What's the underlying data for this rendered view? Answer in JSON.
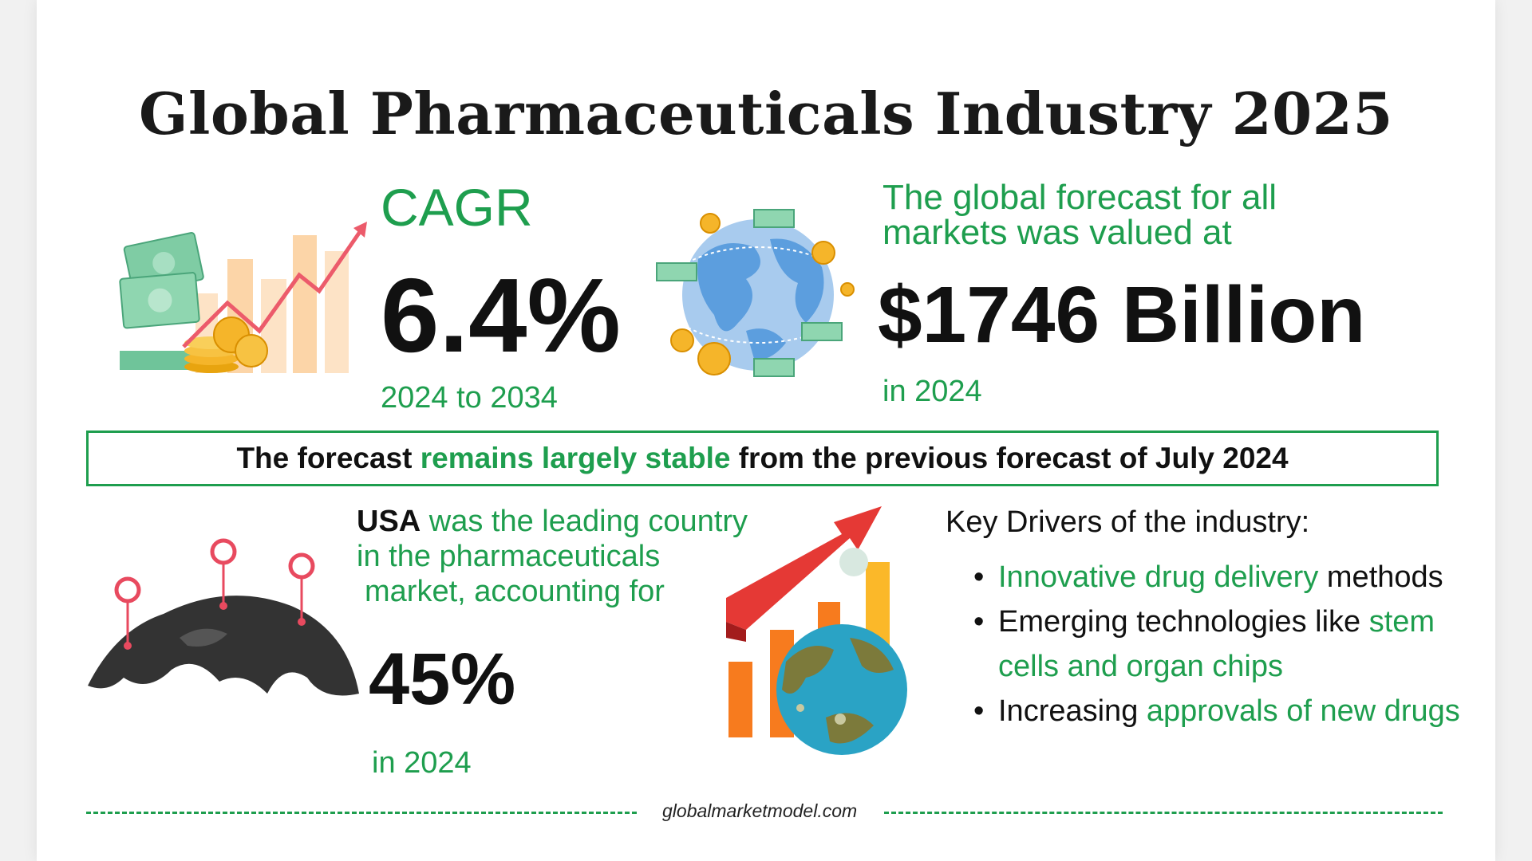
{
  "title": "Global Pharmaceuticals Industry 2025",
  "cagr": {
    "label": "CAGR",
    "value": "6.4%",
    "period": "2024 to 2034"
  },
  "forecast": {
    "desc_line1": "The global forecast for all",
    "desc_line2": "markets was valued at",
    "value": "$1746 Billion",
    "year": "in 2024"
  },
  "banner": {
    "part1": "The forecast ",
    "part2": "remains largely stable",
    "part3": " from the previous forecast of July 2024"
  },
  "usa": {
    "country": "USA",
    "line1_rest": " was the leading country",
    "line2": "in the pharmaceuticals",
    "line3": "market, accounting for",
    "value": "45%",
    "year": "in 2024"
  },
  "drivers": {
    "heading": "Key Drivers of the industry:",
    "items": [
      {
        "green": "Innovative drug delivery",
        "black": " methods"
      },
      {
        "black": "Emerging technologies like ",
        "green": "stem cells and organ chips"
      },
      {
        "black": "Increasing ",
        "green": "approvals of new drugs"
      }
    ]
  },
  "footer": {
    "site": "globalmarketmodel.com"
  },
  "colors": {
    "accent": "#1e9e4e",
    "text": "#111111",
    "red": "#e84a5f",
    "orange": "#f7931e"
  }
}
